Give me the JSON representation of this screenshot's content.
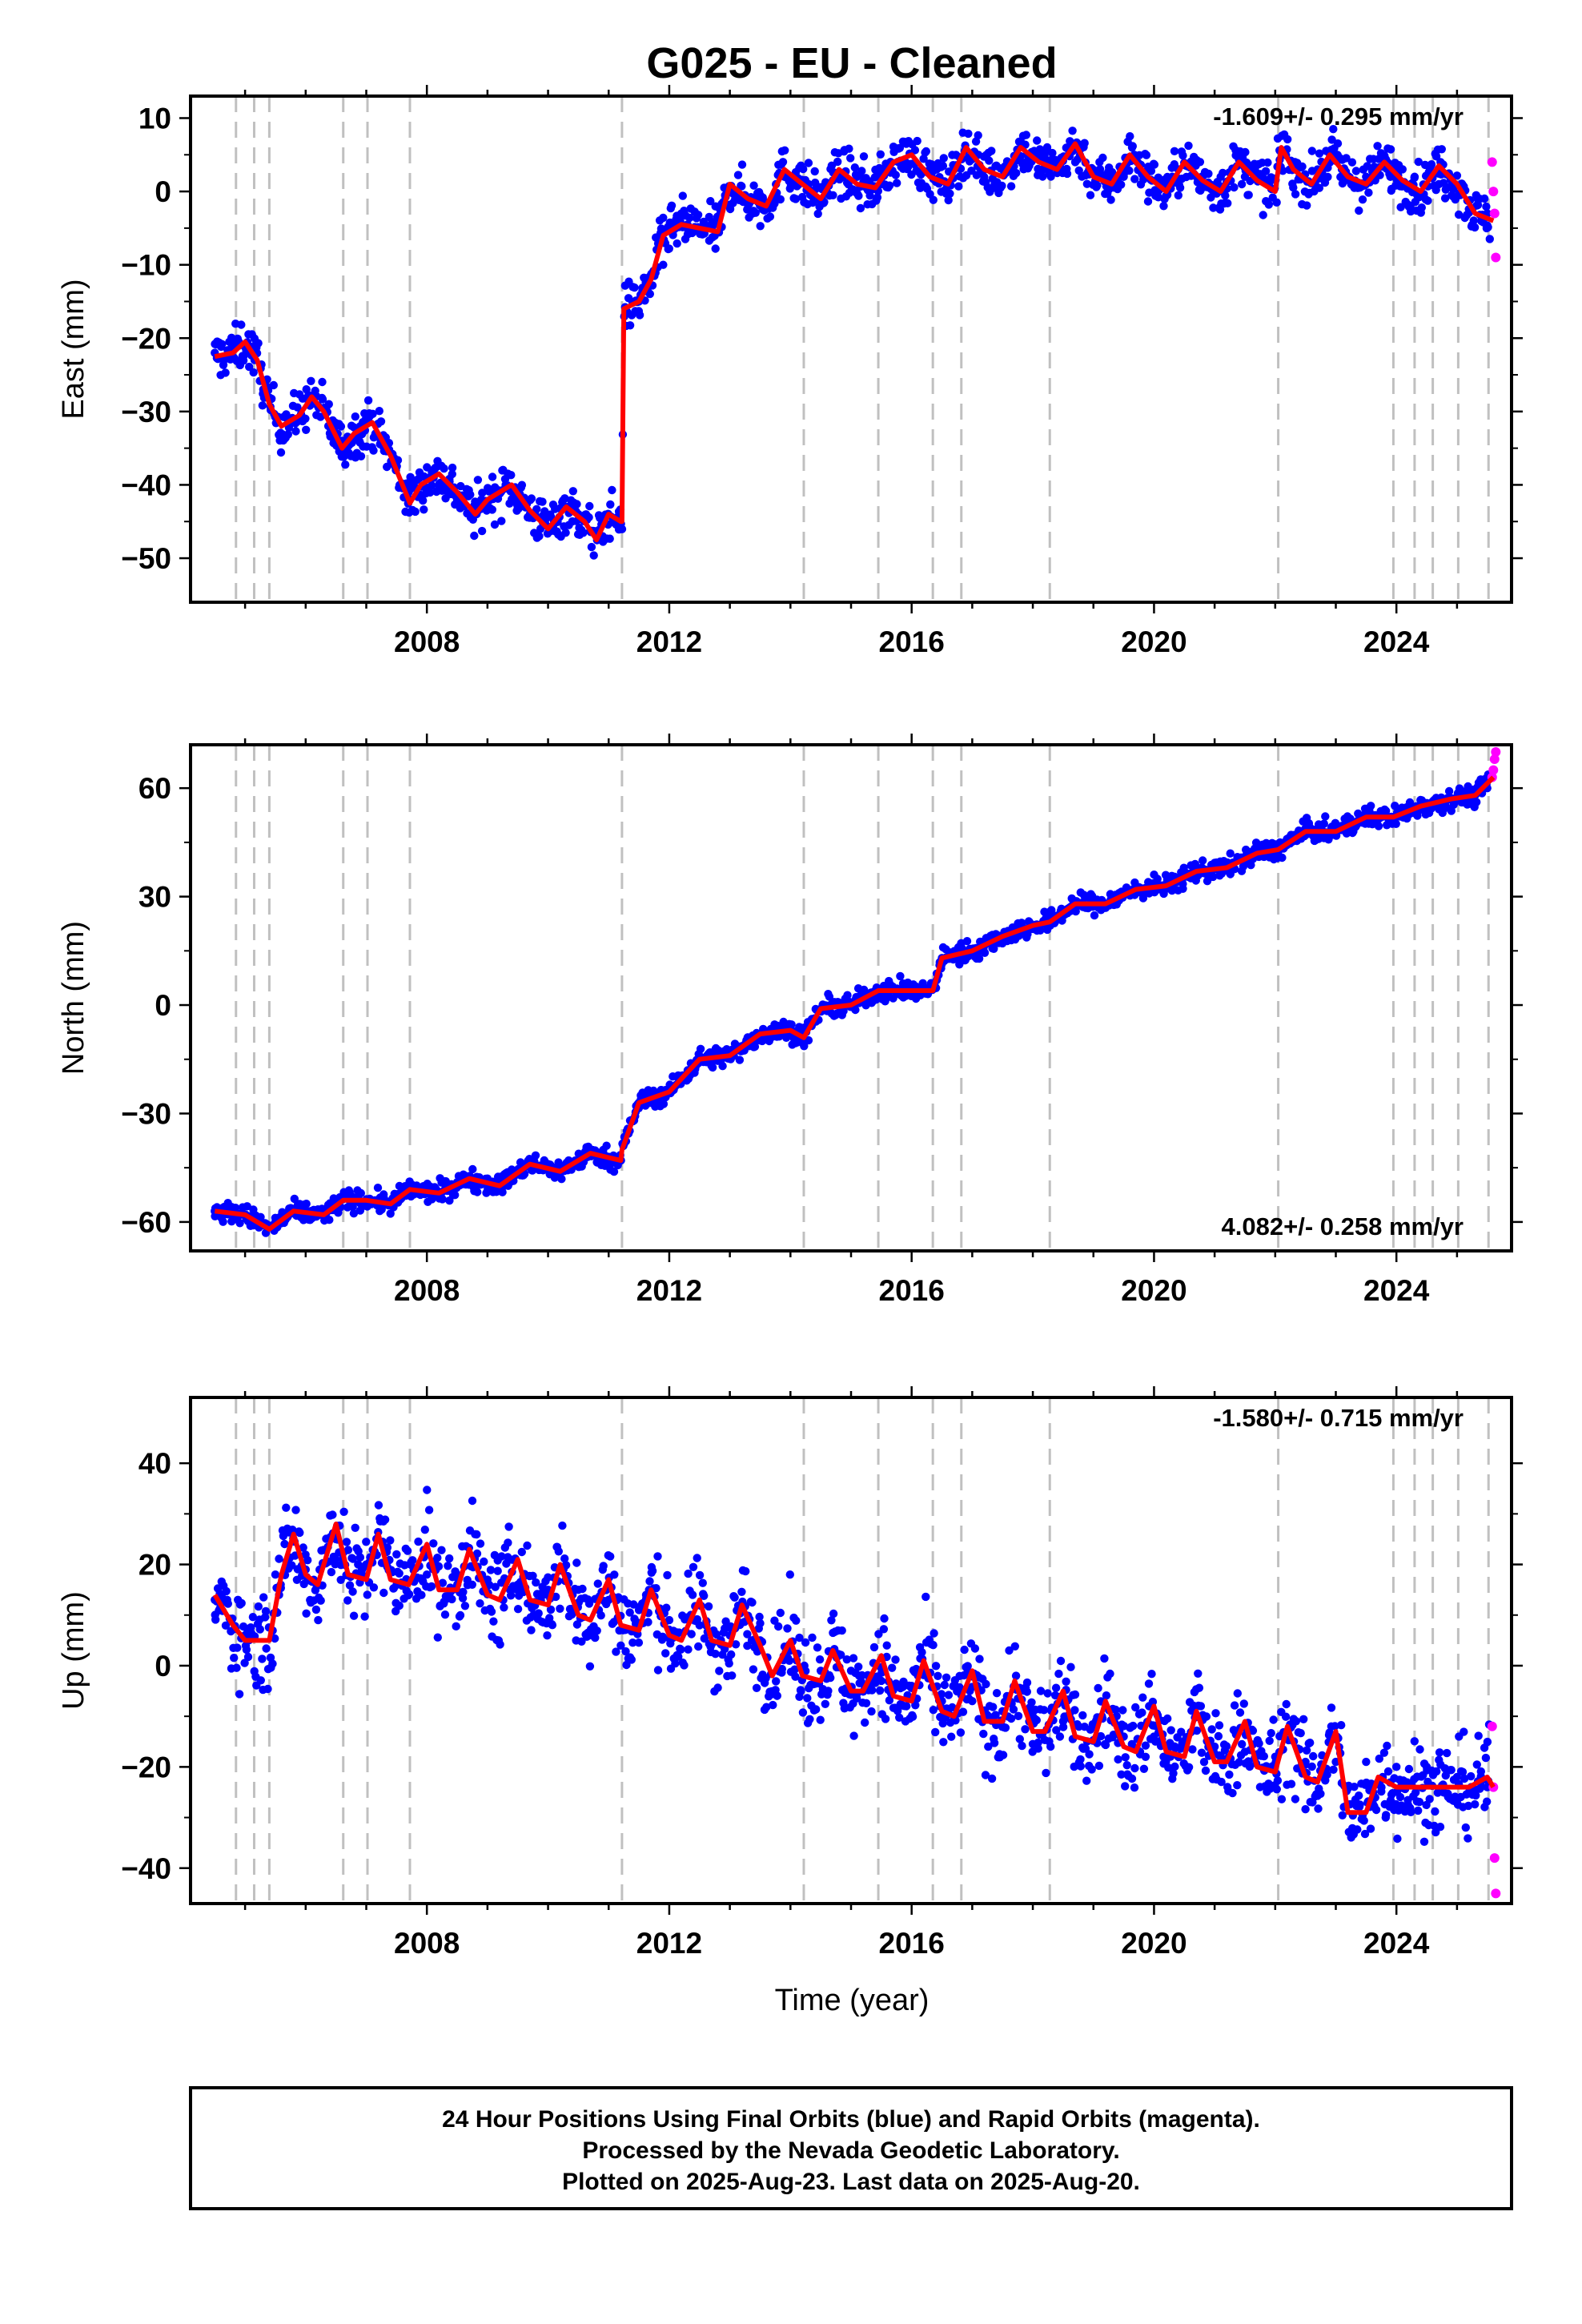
{
  "title": "G025  - EU - Cleaned",
  "xlabel": "Time (year)",
  "colors": {
    "final_orbits": "#0000ff",
    "rapid_orbits": "#ff00ff",
    "model": "#ff0000",
    "event_lines": "#c0c0c0",
    "frame": "#000000"
  },
  "footer": {
    "line1": "24 Hour Positions Using Final Orbits (blue) and Rapid Orbits (magenta).",
    "line2": "Processed by the Nevada Geodetic Laboratory.",
    "line3": "Plotted on 2025-Aug-23. Last data on 2025-Aug-20."
  },
  "chart_data": [
    {
      "type": "scatter",
      "component": "east",
      "ylabel": "East (mm)",
      "rate_text": "-1.609+/- 0.295 mm/yr",
      "rate_position": "top-right",
      "xlim": [
        2004.1,
        2025.9
      ],
      "ylim": [
        -56,
        13
      ],
      "x_ticks": [
        2008,
        2012,
        2016,
        2020,
        2024
      ],
      "y_ticks": [
        -50,
        -40,
        -30,
        -20,
        -10,
        0,
        10
      ],
      "event_lines": [
        2004.85,
        2005.15,
        2005.4,
        2006.62,
        2007.02,
        2007.72,
        2011.22,
        2014.22,
        2015.45,
        2016.35,
        2016.82,
        2018.28,
        2022.05,
        2023.95,
        2024.3,
        2024.6,
        2025.02,
        2025.52
      ],
      "model": {
        "x": [
          2004.5,
          2004.8,
          2005.0,
          2005.2,
          2005.4,
          2005.6,
          2005.9,
          2006.1,
          2006.3,
          2006.6,
          2006.8,
          2007.1,
          2007.4,
          2007.72,
          2007.9,
          2008.2,
          2008.5,
          2008.8,
          2009.0,
          2009.4,
          2009.7,
          2010.0,
          2010.3,
          2010.6,
          2010.8,
          2011.0,
          2011.2,
          2011.22,
          2011.25,
          2011.5,
          2011.7,
          2011.9,
          2012.2,
          2012.5,
          2012.8,
          2013.0,
          2013.3,
          2013.6,
          2013.9,
          2014.2,
          2014.5,
          2014.8,
          2015.1,
          2015.4,
          2015.7,
          2016.0,
          2016.3,
          2016.6,
          2016.9,
          2017.2,
          2017.5,
          2017.8,
          2018.1,
          2018.4,
          2018.7,
          2019.0,
          2019.3,
          2019.6,
          2019.9,
          2020.2,
          2020.5,
          2020.8,
          2021.1,
          2021.4,
          2021.7,
          2022.0,
          2022.1,
          2022.3,
          2022.6,
          2022.9,
          2023.2,
          2023.5,
          2023.8,
          2024.1,
          2024.4,
          2024.7,
          2025.0,
          2025.3,
          2025.6
        ],
        "y": [
          -22.5,
          -22,
          -20.5,
          -23,
          -29,
          -32,
          -30.5,
          -28,
          -30,
          -35,
          -33,
          -31.5,
          -36,
          -42.5,
          -40,
          -38.5,
          -41,
          -44,
          -42,
          -40,
          -43.5,
          -46,
          -43,
          -45,
          -47.5,
          -44,
          -45,
          -45,
          -16,
          -15,
          -12,
          -6,
          -4.5,
          -5,
          -5.5,
          1,
          -1,
          -2,
          3,
          1,
          -1,
          3,
          1,
          0.5,
          4,
          5,
          2,
          1,
          6,
          3,
          2,
          6,
          4,
          3,
          6.5,
          2,
          1,
          5,
          2,
          0,
          4,
          1.5,
          0,
          4,
          1.5,
          0,
          6,
          3,
          1,
          5,
          2,
          1,
          4,
          1.5,
          0,
          3.5,
          1,
          -3,
          -4
        ]
      },
      "final_orbits_series": {
        "x": [
          2004.5,
          2004.9,
          2005.3,
          2005.7,
          2006.1,
          2006.5,
          2006.9,
          2007.3,
          2007.7,
          2008.1,
          2008.5,
          2008.9,
          2009.3,
          2009.7,
          2010.1,
          2010.5,
          2010.9,
          2011.2,
          2011.5,
          2011.9,
          2012.3,
          2012.7,
          2013.1,
          2013.5,
          2013.9,
          2014.3,
          2014.7,
          2015.1,
          2015.5,
          2015.9,
          2016.3,
          2016.7,
          2017.1,
          2017.5,
          2017.9,
          2018.3,
          2018.7,
          2019.1,
          2019.5,
          2019.9,
          2020.3,
          2020.7,
          2021.1,
          2021.5,
          2021.9,
          2022.3,
          2022.7,
          2023.1,
          2023.5,
          2023.9,
          2024.3,
          2024.7,
          2025.1,
          2025.5
        ],
        "y": [
          -22,
          -21,
          -27,
          -31,
          -28,
          -33,
          -32,
          -35,
          -41,
          -38,
          -42,
          -42,
          -40,
          -44,
          -45,
          -44,
          -47,
          -46,
          -15,
          -10,
          -4.5,
          -5,
          0,
          -0.5,
          2,
          1,
          1.5,
          2,
          1,
          4,
          3,
          3,
          5,
          3,
          5,
          4,
          4,
          4,
          2,
          3,
          2,
          2,
          2,
          2,
          1,
          3,
          3,
          3,
          2,
          2,
          2,
          1,
          0,
          -3
        ]
      },
      "rapid_orbits_series": {
        "x": [
          2025.58,
          2025.6,
          2025.62,
          2025.64
        ],
        "y": [
          4,
          0,
          -3,
          -9
        ]
      }
    },
    {
      "type": "scatter",
      "component": "north",
      "ylabel": "North (mm)",
      "rate_text": "4.082+/- 0.258 mm/yr",
      "rate_position": "bottom-right",
      "xlim": [
        2004.1,
        2025.9
      ],
      "ylim": [
        -68,
        72
      ],
      "x_ticks": [
        2008,
        2012,
        2016,
        2020,
        2024
      ],
      "y_ticks": [
        -60,
        -30,
        0,
        30,
        60
      ],
      "event_lines": [
        2004.85,
        2005.15,
        2005.4,
        2006.62,
        2007.02,
        2007.72,
        2011.22,
        2014.22,
        2015.45,
        2016.35,
        2016.82,
        2018.28,
        2022.05,
        2023.95,
        2024.3,
        2024.6,
        2025.02,
        2025.52
      ],
      "model": {
        "x": [
          2004.5,
          2005.0,
          2005.4,
          2005.8,
          2006.3,
          2006.62,
          2007.0,
          2007.4,
          2007.72,
          2008.2,
          2008.7,
          2009.2,
          2009.7,
          2010.2,
          2010.7,
          2011.2,
          2011.22,
          2011.5,
          2012.0,
          2012.5,
          2013.0,
          2013.5,
          2014.0,
          2014.22,
          2014.5,
          2015.0,
          2015.45,
          2015.9,
          2016.35,
          2016.5,
          2017.0,
          2017.5,
          2018.0,
          2018.28,
          2018.7,
          2019.2,
          2019.7,
          2020.2,
          2020.7,
          2021.2,
          2021.7,
          2022.05,
          2022.5,
          2023.0,
          2023.5,
          2023.95,
          2024.4,
          2024.9,
          2025.3,
          2025.6
        ],
        "y": [
          -57,
          -58,
          -62,
          -57,
          -58,
          -54,
          -54,
          -55,
          -51,
          -52,
          -48,
          -50,
          -44,
          -46,
          -41,
          -43,
          -40,
          -27,
          -24,
          -15,
          -14,
          -8,
          -7,
          -9,
          -1,
          0,
          4,
          4,
          4,
          13,
          15,
          19,
          22,
          23,
          28,
          28,
          32,
          33,
          37,
          38,
          42,
          43,
          48,
          48,
          52,
          52,
          55,
          57,
          58,
          63
        ]
      },
      "final_orbits_series": {
        "x": [
          2004.5,
          2005.0,
          2005.5,
          2006.0,
          2006.5,
          2007.0,
          2007.5,
          2008.0,
          2008.5,
          2009.0,
          2009.5,
          2010.0,
          2010.5,
          2011.0,
          2011.5,
          2012.0,
          2012.5,
          2013.0,
          2013.5,
          2014.0,
          2014.5,
          2015.0,
          2015.5,
          2016.0,
          2016.5,
          2017.0,
          2017.5,
          2018.0,
          2018.5,
          2019.0,
          2019.5,
          2020.0,
          2020.5,
          2021.0,
          2021.5,
          2022.0,
          2022.5,
          2023.0,
          2023.5,
          2024.0,
          2024.5,
          2025.0,
          2025.5
        ],
        "y": [
          -57,
          -58,
          -60,
          -58,
          -55,
          -54,
          -53,
          -52,
          -49,
          -48,
          -46,
          -44,
          -43,
          -42,
          -27,
          -23,
          -15,
          -13,
          -8,
          -6,
          -1,
          0,
          4,
          4,
          13,
          15,
          19,
          22,
          26,
          28,
          31,
          33,
          36,
          38,
          41,
          43,
          47,
          48,
          51,
          52,
          55,
          57,
          60
        ]
      },
      "rapid_orbits_series": {
        "x": [
          2025.58,
          2025.6,
          2025.62,
          2025.64
        ],
        "y": [
          63,
          65,
          68,
          70
        ]
      }
    },
    {
      "type": "scatter",
      "component": "up",
      "ylabel": "Up (mm)",
      "rate_text": "-1.580+/- 0.715 mm/yr",
      "rate_position": "top-right",
      "xlim": [
        2004.1,
        2025.9
      ],
      "ylim": [
        -47,
        53
      ],
      "x_ticks": [
        2008,
        2012,
        2016,
        2020,
        2024
      ],
      "y_ticks": [
        -40,
        -20,
        0,
        20,
        40
      ],
      "event_lines": [
        2004.85,
        2005.15,
        2005.4,
        2006.62,
        2007.02,
        2007.72,
        2011.22,
        2014.22,
        2015.45,
        2016.35,
        2016.82,
        2018.28,
        2022.05,
        2023.95,
        2024.3,
        2024.6,
        2025.02,
        2025.52
      ],
      "model": {
        "x": [
          2004.5,
          2004.8,
          2005.0,
          2005.2,
          2005.4,
          2005.6,
          2005.8,
          2006.0,
          2006.2,
          2006.5,
          2006.7,
          2007.0,
          2007.2,
          2007.4,
          2007.7,
          2008.0,
          2008.2,
          2008.5,
          2008.7,
          2009.0,
          2009.2,
          2009.5,
          2009.7,
          2010.0,
          2010.2,
          2010.5,
          2010.7,
          2011.0,
          2011.2,
          2011.5,
          2011.7,
          2012.0,
          2012.2,
          2012.5,
          2012.7,
          2013.0,
          2013.2,
          2013.5,
          2013.7,
          2014.0,
          2014.2,
          2014.5,
          2014.7,
          2015.0,
          2015.2,
          2015.5,
          2015.7,
          2016.0,
          2016.2,
          2016.5,
          2016.7,
          2017.0,
          2017.2,
          2017.5,
          2017.7,
          2018.0,
          2018.2,
          2018.5,
          2018.7,
          2019.0,
          2019.2,
          2019.5,
          2019.7,
          2020.0,
          2020.2,
          2020.5,
          2020.7,
          2021.0,
          2021.2,
          2021.5,
          2021.7,
          2022.0,
          2022.2,
          2022.5,
          2022.7,
          2023.0,
          2023.2,
          2023.5,
          2023.7,
          2024.0,
          2024.2,
          2024.5,
          2024.7,
          2025.0,
          2025.2,
          2025.5,
          2025.6
        ],
        "y": [
          14,
          8,
          5,
          5,
          5,
          18,
          26,
          18,
          16,
          28,
          18,
          17,
          26,
          17,
          16,
          24,
          15,
          15,
          23,
          14,
          13,
          21,
          13,
          12,
          20,
          10,
          9,
          17,
          8,
          7,
          15,
          6,
          5,
          13,
          5,
          4,
          12,
          4,
          -2,
          5,
          -2,
          -3,
          3,
          -5,
          -5,
          2,
          -6,
          -7,
          1,
          -9,
          -10,
          -1,
          -11,
          -11,
          -3,
          -13,
          -13,
          -5,
          -14,
          -15,
          -7,
          -16,
          -17,
          -8,
          -17,
          -18,
          -9,
          -19,
          -19,
          -11,
          -20,
          -21,
          -12,
          -22,
          -23,
          -13,
          -29,
          -29,
          -22,
          -24,
          -24,
          -24,
          -24,
          -24,
          -24,
          -22,
          -24
        ]
      },
      "final_orbits_series": {
        "x": [
          2004.5,
          2005.0,
          2005.5,
          2006.0,
          2006.5,
          2007.0,
          2007.5,
          2008.0,
          2008.5,
          2009.0,
          2009.5,
          2010.0,
          2010.5,
          2011.0,
          2011.5,
          2012.0,
          2012.5,
          2013.0,
          2013.5,
          2014.0,
          2014.5,
          2015.0,
          2015.5,
          2016.0,
          2016.5,
          2017.0,
          2017.5,
          2018.0,
          2018.5,
          2019.0,
          2019.5,
          2020.0,
          2020.5,
          2021.0,
          2021.5,
          2022.0,
          2022.5,
          2023.0,
          2023.5,
          2024.0,
          2024.5,
          2025.0,
          2025.5
        ],
        "y": [
          13,
          6,
          18,
          19,
          25,
          20,
          22,
          18,
          18,
          17,
          16,
          15,
          15,
          13,
          11,
          9,
          8,
          6,
          5,
          3,
          -1,
          -1,
          -3,
          -4,
          -7,
          -7,
          -9,
          -10,
          -11,
          -12,
          -14,
          -14,
          -15,
          -16,
          -17,
          -18,
          -19,
          -19,
          -19,
          -20,
          -20,
          -22,
          -24
        ]
      },
      "rapid_orbits_series": {
        "x": [
          2025.58,
          2025.6,
          2025.62,
          2025.64
        ],
        "y": [
          -12,
          -24,
          -38,
          -45
        ]
      }
    }
  ]
}
